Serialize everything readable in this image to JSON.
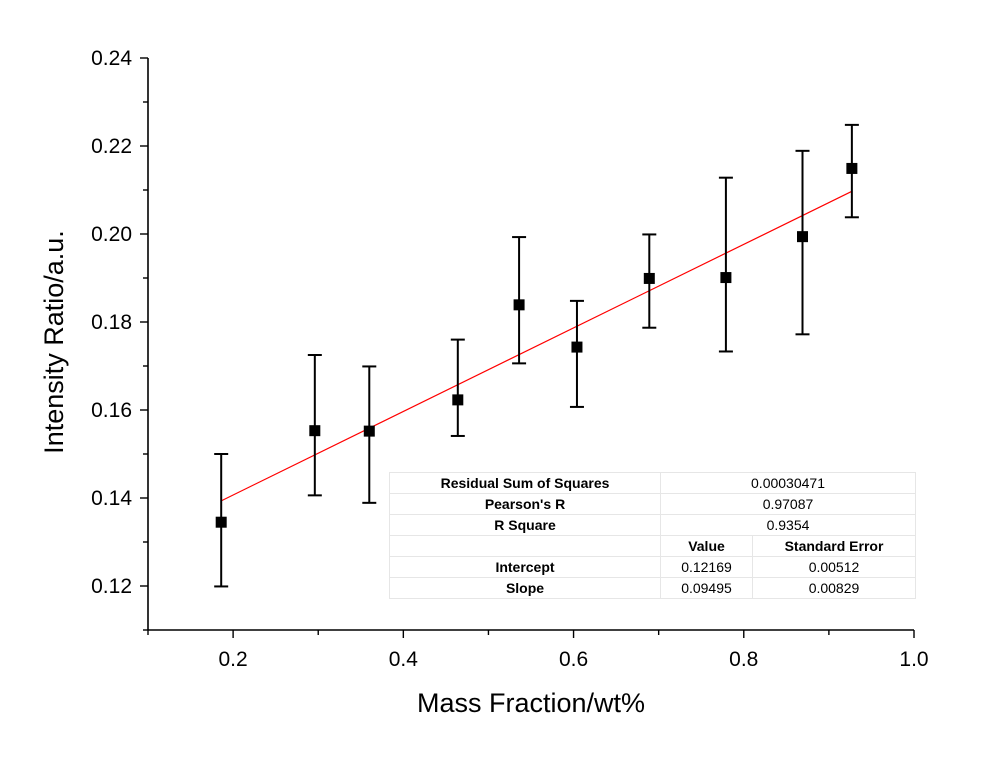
{
  "chart_data": {
    "type": "scatter",
    "title": "",
    "xlabel": "Mass Fraction/wt%",
    "ylabel": "Intensity Ratio/a.u.",
    "xlim": [
      0.1,
      1.0
    ],
    "ylim": [
      0.11,
      0.24
    ],
    "xticks": [
      0.2,
      0.4,
      0.6,
      0.8,
      1.0
    ],
    "xtick_labels": [
      "0.2",
      "0.4",
      "0.6",
      "0.8",
      "1.0"
    ],
    "yticks": [
      0.12,
      0.14,
      0.16,
      0.18,
      0.2,
      0.22,
      0.24
    ],
    "ytick_labels": [
      "0.12",
      "0.14",
      "0.16",
      "0.18",
      "0.20",
      "0.22",
      "0.24"
    ],
    "grid": false,
    "marker_color": "#000000",
    "fit_color": "#ff0000",
    "points": [
      {
        "x": 0.186,
        "y": 0.1345,
        "ylow": 0.1199,
        "yhigh": 0.15
      },
      {
        "x": 0.296,
        "y": 0.1553,
        "ylow": 0.1406,
        "yhigh": 0.1725
      },
      {
        "x": 0.36,
        "y": 0.1552,
        "ylow": 0.1389,
        "yhigh": 0.1699
      },
      {
        "x": 0.464,
        "y": 0.1623,
        "ylow": 0.1541,
        "yhigh": 0.176
      },
      {
        "x": 0.536,
        "y": 0.1839,
        "ylow": 0.1706,
        "yhigh": 0.1993
      },
      {
        "x": 0.604,
        "y": 0.1743,
        "ylow": 0.1607,
        "yhigh": 0.1848
      },
      {
        "x": 0.689,
        "y": 0.1899,
        "ylow": 0.1787,
        "yhigh": 0.1999
      },
      {
        "x": 0.779,
        "y": 0.1901,
        "ylow": 0.1733,
        "yhigh": 0.2128
      },
      {
        "x": 0.869,
        "y": 0.1994,
        "ylow": 0.1772,
        "yhigh": 0.2189
      },
      {
        "x": 0.927,
        "y": 0.2149,
        "ylow": 0.2038,
        "yhigh": 0.2248
      }
    ],
    "fit": {
      "intercept": 0.12169,
      "slope": 0.09495,
      "x_range": [
        0.186,
        0.927
      ]
    }
  },
  "stats_table": {
    "rss_label": "Residual Sum of Squares",
    "rss_value": "0.00030471",
    "pearson_label": "Pearson's R",
    "pearson_value": "0.97087",
    "rsq_label": "R Square",
    "rsq_value": "0.9354",
    "value_header": "Value",
    "stderr_header": "Standard Error",
    "intercept_label": "Intercept",
    "intercept_value": "0.12169",
    "intercept_stderr": "0.00512",
    "slope_label": "Slope",
    "slope_value": "0.09495",
    "slope_stderr": "0.00829"
  }
}
